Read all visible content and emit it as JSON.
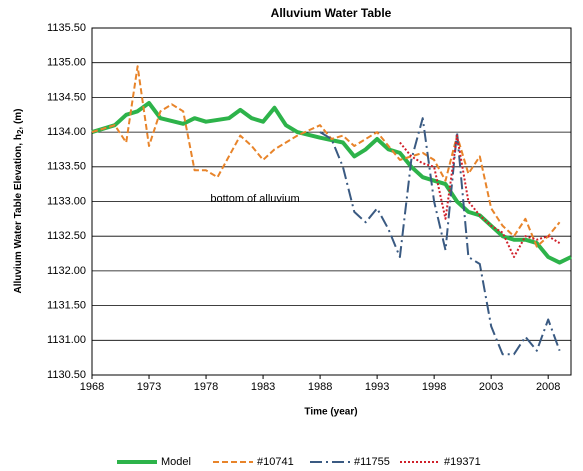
{
  "chart_data": {
    "type": "line",
    "title": "Alluvium Water Table",
    "xlabel": "Time (year)",
    "ylabel": "Alluvium Water Table Elevation,  h",
    "ylabel_sub": "2",
    "ylabel_end": ", (m)",
    "annotation": "bottom of alluvium",
    "xlim": [
      1968,
      2010
    ],
    "xticks": [
      1968,
      1973,
      1978,
      1983,
      1988,
      1993,
      1998,
      2003,
      2008
    ],
    "ylim": [
      1130.5,
      1135.5
    ],
    "yticks": [
      {
        "value": 1130.5,
        "label": "1130.50"
      },
      {
        "value": 1131,
        "label": "1131.00"
      },
      {
        "value": 1131.5,
        "label": "1131.50"
      },
      {
        "value": 1132,
        "label": "1132.00"
      },
      {
        "value": 1132.5,
        "label": "1132.50"
      },
      {
        "value": 1133,
        "label": "1133.00"
      },
      {
        "value": 1133.5,
        "label": "1133.50"
      },
      {
        "value": 1134,
        "label": "1134.00"
      },
      {
        "value": 1134.5,
        "label": "1134.50"
      },
      {
        "value": 1135,
        "label": "1135.00"
      },
      {
        "value": 1135.5,
        "label": "1135.50"
      }
    ],
    "grid": true,
    "legend": "bottom",
    "series": [
      {
        "name": "Model",
        "color": "#2db34a",
        "style": "solid",
        "x": [
          1968,
          1970,
          1971,
          1972,
          1973,
          1974,
          1976,
          1977,
          1978,
          1980,
          1981,
          1982,
          1983,
          1984,
          1985,
          1986,
          1988,
          1990,
          1991,
          1992,
          1993,
          1994,
          1995,
          1996,
          1997,
          1998,
          1999,
          2000,
          2001,
          2002,
          2003,
          2004,
          2005,
          2006,
          2007,
          2008,
          2009,
          2010
        ],
        "values": [
          1134.0,
          1134.1,
          1134.25,
          1134.3,
          1134.42,
          1134.2,
          1134.12,
          1134.2,
          1134.15,
          1134.2,
          1134.32,
          1134.2,
          1134.15,
          1134.35,
          1134.1,
          1134.0,
          1133.92,
          1133.85,
          1133.65,
          1133.75,
          1133.9,
          1133.75,
          1133.7,
          1133.5,
          1133.35,
          1133.3,
          1133.25,
          1133.0,
          1132.85,
          1132.8,
          1132.65,
          1132.5,
          1132.45,
          1132.45,
          1132.4,
          1132.2,
          1132.12,
          1132.2
        ]
      },
      {
        "name": "#10741",
        "color": "#e8842a",
        "style": "dashed",
        "x": [
          1968,
          1970,
          1971,
          1972,
          1973,
          1974,
          1975,
          1976,
          1977,
          1978,
          1979,
          1980,
          1981,
          1982,
          1983,
          1984,
          1986,
          1988,
          1989,
          1990,
          1991,
          1992,
          1993,
          1994,
          1995,
          1996,
          1997,
          1998,
          1999,
          2000,
          2001,
          2002,
          2003,
          2004,
          2005,
          2006,
          2007,
          2008,
          2009
        ],
        "values": [
          1134.0,
          1134.1,
          1133.85,
          1134.95,
          1133.8,
          1134.3,
          1134.4,
          1134.3,
          1133.45,
          1133.45,
          1133.35,
          1133.65,
          1133.95,
          1133.8,
          1133.6,
          1133.75,
          1133.95,
          1134.1,
          1133.9,
          1133.95,
          1133.8,
          1133.9,
          1134.0,
          1133.8,
          1133.6,
          1133.65,
          1133.7,
          1133.6,
          1133.3,
          1133.95,
          1133.4,
          1133.65,
          1132.9,
          1132.65,
          1132.5,
          1132.75,
          1132.35,
          1132.5,
          1132.7
        ]
      },
      {
        "name": "#11755",
        "color": "#3a5a82",
        "style": "dashdot",
        "x": [
          1988,
          1989,
          1990,
          1991,
          1992,
          1993,
          1994,
          1995,
          1996,
          1997,
          1998,
          1999,
          2000,
          2001,
          2002,
          2003,
          2004,
          2005,
          2006,
          2007,
          2008,
          2009
        ],
        "values": [
          1134.0,
          1133.9,
          1133.5,
          1132.85,
          1132.7,
          1132.9,
          1132.6,
          1132.2,
          1133.6,
          1134.2,
          1133.0,
          1132.3,
          1134.0,
          1132.2,
          1132.1,
          1131.2,
          1130.8,
          1130.8,
          1131.05,
          1130.85,
          1131.3,
          1130.85
        ]
      },
      {
        "name": "#19371",
        "color": "#d0202a",
        "style": "dotted",
        "x": [
          1995,
          1996,
          1997,
          1998,
          1999,
          2000,
          2001,
          2002,
          2003,
          2004,
          2005,
          2006,
          2007,
          2008,
          2009
        ],
        "values": [
          1133.85,
          1133.65,
          1133.55,
          1133.5,
          1132.75,
          1133.95,
          1133.0,
          1132.8,
          1132.65,
          1132.55,
          1132.2,
          1132.5,
          1132.45,
          1132.5,
          1132.4
        ]
      }
    ]
  }
}
